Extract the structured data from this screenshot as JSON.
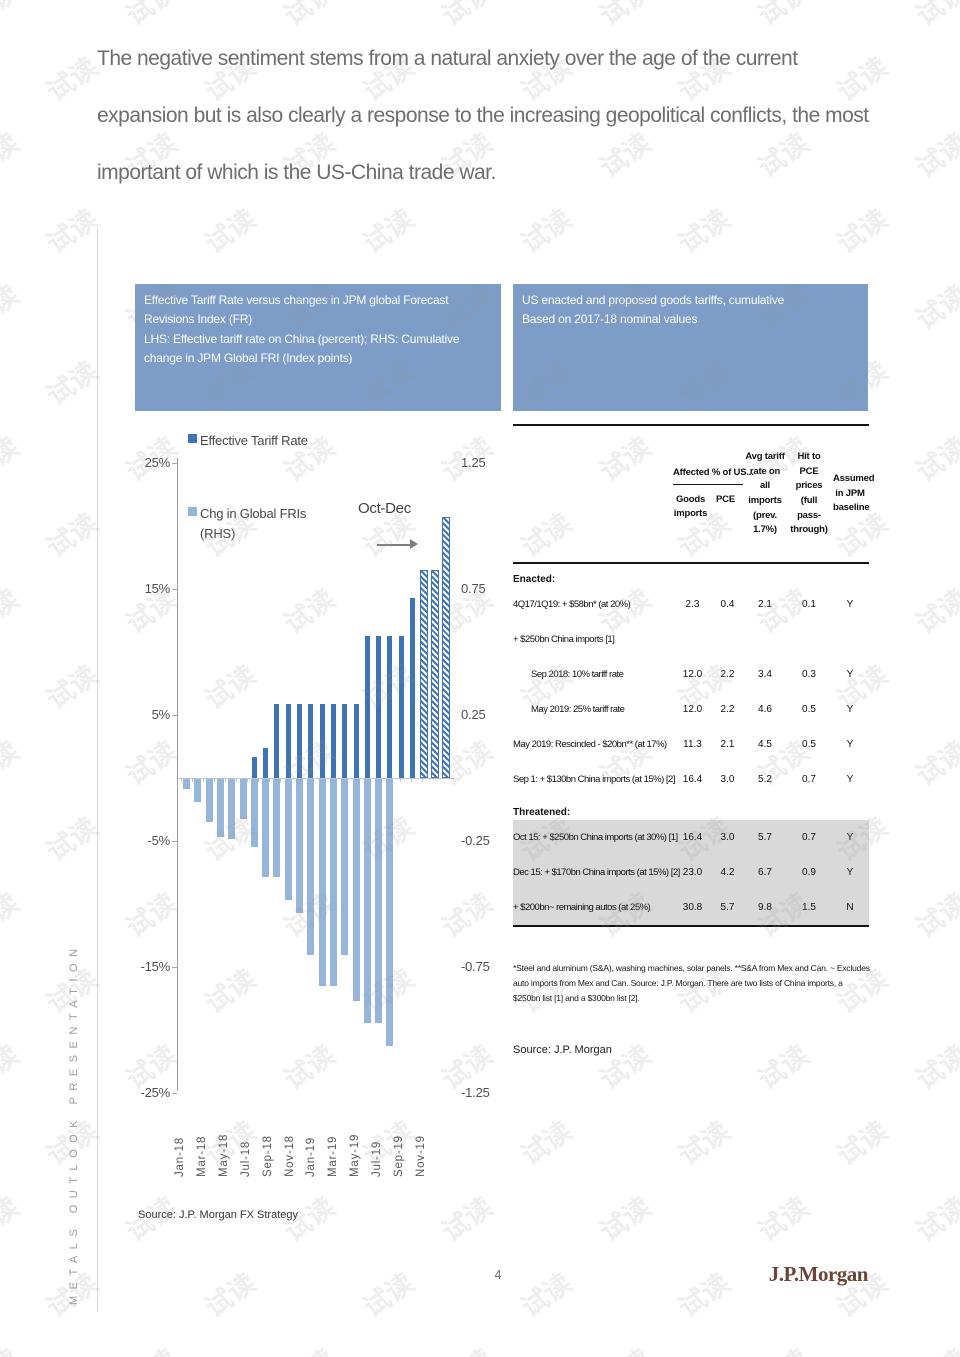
{
  "page": {
    "title": "The negative sentiment stems from a natural anxiety over the age of the current expansion but is also clearly a response to the increasing geopolitical conflicts, the most important of which is the US-China trade war.",
    "sidebar_text": "METALS OUTLOOK PRESENTATION",
    "watermark_text": "试读",
    "page_number": "4",
    "logo_text": "J.P.Morgan"
  },
  "colors": {
    "panel_header_bg": "#7d9cc7",
    "bar_dark": "#3e73b5",
    "bar_light": "#95b5da",
    "threatened_row_bg": "#d9d9d9",
    "logo_brown": "#6b4437"
  },
  "chart": {
    "header_line1": "Effective Tariff Rate versus changes in JPM global Forecast Revisions Index (FR)",
    "header_line2": "LHS: Effective tariff rate on China (percent); RHS: Cumulative change in JPM Global FRI (Index points)",
    "legend": [
      {
        "label": "Effective Tariff Rate",
        "swatch": "dark"
      },
      {
        "label": "Chg in Global FRIs (RHS)",
        "swatch": "light"
      }
    ],
    "annotation": "Oct-Dec",
    "source": "Source: J.P. Morgan FX Strategy"
  },
  "chart_data": {
    "type": "bar",
    "categories": [
      "Jan-18",
      "Feb-18",
      "Mar-18",
      "Apr-18",
      "May-18",
      "Jun-18",
      "Jul-18",
      "Aug-18",
      "Sep-18",
      "Oct-18",
      "Nov-18",
      "Dec-18",
      "Jan-19",
      "Feb-19",
      "Mar-19",
      "Apr-19",
      "May-19",
      "Jun-19",
      "Jul-19",
      "Aug-19",
      "Sep-19",
      "Oct-19",
      "Nov-19",
      "Dec-19"
    ],
    "series": [
      {
        "name": "Effective Tariff Rate",
        "axis": "left",
        "unit": "%",
        "values": [
          null,
          null,
          null,
          null,
          null,
          null,
          1.7,
          2.4,
          5.9,
          5.9,
          5.9,
          5.9,
          5.9,
          5.9,
          5.9,
          5.9,
          11.3,
          11.3,
          11.3,
          11.3,
          14.3,
          16.5,
          16.5,
          20.7
        ],
        "hatched_from_index": 21,
        "hatched_note": "Oct-Dec forecast"
      },
      {
        "name": "Chg in Global FRIs (RHS)",
        "axis": "right",
        "unit": "index points",
        "values": [
          -0.04,
          -0.09,
          -0.17,
          -0.23,
          -0.24,
          -0.16,
          -0.27,
          -0.39,
          -0.39,
          -0.48,
          -0.53,
          -0.7,
          -0.82,
          -0.82,
          -0.7,
          -0.88,
          -0.97,
          -0.97,
          -1.06,
          null,
          null,
          null,
          null,
          null
        ]
      }
    ],
    "left_axis": {
      "tick_labels": [
        "25%",
        "15%",
        "5%",
        "-5%",
        "-15%",
        "-25%"
      ],
      "tick_values": [
        25,
        15,
        5,
        -5,
        -15,
        -25
      ],
      "range": [
        -25,
        25
      ]
    },
    "right_axis": {
      "tick_labels": [
        "1.25",
        "0.75",
        "0.25",
        "-0.25",
        "-0.75",
        "-1.25"
      ],
      "tick_values": [
        1.25,
        0.75,
        0.25,
        -0.25,
        -0.75,
        -1.25
      ],
      "range": [
        -1.25,
        1.25
      ]
    },
    "x_tick_labels": [
      "Jan-18",
      "Mar-18",
      "May-18",
      "Jul-18",
      "Sep-18",
      "Nov-18",
      "Jan-19",
      "Mar-19",
      "May-19",
      "Jul-19",
      "Sep-19",
      "Nov-19"
    ],
    "grid": false,
    "legend_position": "top-left"
  },
  "table": {
    "header_line1": "US enacted and proposed goods tariffs, cumulative",
    "header_line2": "Based on 2017-18 nominal values",
    "column_group_title": "Affected % of US...",
    "columns": [
      "Goods imports",
      "PCE",
      "Avg tariff rate on all imports (prev. 1.7%)",
      "Hit to PCE prices (full pass-through)",
      "Assumed in JPM baseline"
    ],
    "sections": [
      {
        "title": "Enacted:",
        "shaded": false,
        "rows": [
          {
            "label": "4Q17/1Q19: + $58bn* (at 20%)",
            "indent": 0,
            "values": [
              "2.3",
              "0.4",
              "2.1",
              "0.1",
              "Y"
            ]
          },
          {
            "label": "+ $250bn China imports [1]",
            "indent": 0,
            "values": [
              "",
              "",
              "",
              "",
              ""
            ]
          },
          {
            "label": "Sep 2018: 10% tariff rate",
            "indent": 1,
            "values": [
              "12.0",
              "2.2",
              "3.4",
              "0.3",
              "Y"
            ]
          },
          {
            "label": "May 2019: 25% tariff rate",
            "indent": 1,
            "values": [
              "12.0",
              "2.2",
              "4.6",
              "0.5",
              "Y"
            ]
          },
          {
            "label": "May 2019: Rescinded - $20bn** (at 17%)",
            "indent": 0,
            "values": [
              "11.3",
              "2.1",
              "4.5",
              "0.5",
              "Y"
            ]
          },
          {
            "label": "Sep 1: + $130bn China imports (at 15%) [2]",
            "indent": 0,
            "values": [
              "16.4",
              "3.0",
              "5.2",
              "0.7",
              "Y"
            ]
          }
        ]
      },
      {
        "title": "Threatened:",
        "shaded": true,
        "rows": [
          {
            "label": "Oct 15: + $250bn China imports (at 30%) [1]",
            "indent": 0,
            "values": [
              "16.4",
              "3.0",
              "5.7",
              "0.7",
              "Y"
            ]
          },
          {
            "label": "Dec 15: + $170bn China imports (at 15%) [2]",
            "indent": 0,
            "values": [
              "23.0",
              "4.2",
              "6.7",
              "0.9",
              "Y"
            ]
          },
          {
            "label": "+ $200bn~ remaining autos (at 25%)",
            "indent": 0,
            "values": [
              "30.8",
              "5.7",
              "9.8",
              "1.5",
              "N"
            ]
          }
        ]
      }
    ],
    "footnote": "*Steel and aluminum (S&A), washing machines, solar panels. **S&A from Mex and Can. ~ Excludes auto imports from Mex and Can. Source: J.P. Morgan.  There are two lists of China imports, a $250bn list [1] and a $300bn list [2].",
    "source": "Source: J.P. Morgan"
  }
}
